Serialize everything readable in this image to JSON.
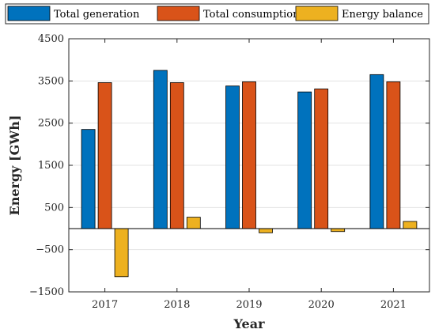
{
  "chart_data": {
    "type": "bar",
    "categories": [
      "2017",
      "2018",
      "2019",
      "2020",
      "2021"
    ],
    "series": [
      {
        "name": "Total generation",
        "values": [
          2350,
          3750,
          3380,
          3240,
          3650
        ]
      },
      {
        "name": "Total consumption",
        "values": [
          3460,
          3460,
          3480,
          3310,
          3480
        ]
      },
      {
        "name": "Energy balance",
        "values": [
          -1140,
          270,
          -100,
          -70,
          170
        ]
      }
    ],
    "title": "",
    "xlabel": "Year",
    "ylabel": "Energy [GWh]",
    "ylim": [
      -1500,
      4500
    ],
    "yticks": [
      "4500",
      "3500",
      "2500",
      "1500",
      "500",
      "−500",
      "−1500"
    ],
    "ytick_values": [
      4500,
      3500,
      2500,
      1500,
      500,
      -500,
      -1500
    ],
    "grid": true,
    "legend_position": "top",
    "colors": [
      "#0072BD",
      "#D95319",
      "#EDB120"
    ]
  }
}
